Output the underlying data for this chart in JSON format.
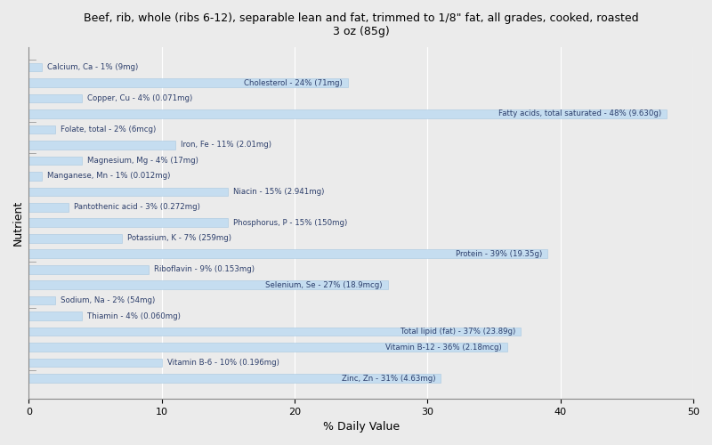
{
  "title": "Beef, rib, whole (ribs 6-12), separable lean and fat, trimmed to 1/8\" fat, all grades, cooked, roasted\n3 oz (85g)",
  "xlabel": "% Daily Value",
  "ylabel": "Nutrient",
  "xlim": [
    0,
    50
  ],
  "xticks": [
    0,
    10,
    20,
    30,
    40,
    50
  ],
  "bar_color": "#c5ddf0",
  "bar_edge_color": "#a8c8e0",
  "background_color": "#ebebeb",
  "text_color": "#2c3e6b",
  "text_threshold": 18,
  "bar_height": 0.55,
  "nutrients": [
    {
      "label": "Calcium, Ca - 1% (9mg)",
      "value": 1
    },
    {
      "label": "Cholesterol - 24% (71mg)",
      "value": 24
    },
    {
      "label": "Copper, Cu - 4% (0.071mg)",
      "value": 4
    },
    {
      "label": "Fatty acids, total saturated - 48% (9.630g)",
      "value": 48
    },
    {
      "label": "Folate, total - 2% (6mcg)",
      "value": 2
    },
    {
      "label": "Iron, Fe - 11% (2.01mg)",
      "value": 11
    },
    {
      "label": "Magnesium, Mg - 4% (17mg)",
      "value": 4
    },
    {
      "label": "Manganese, Mn - 1% (0.012mg)",
      "value": 1
    },
    {
      "label": "Niacin - 15% (2.941mg)",
      "value": 15
    },
    {
      "label": "Pantothenic acid - 3% (0.272mg)",
      "value": 3
    },
    {
      "label": "Phosphorus, P - 15% (150mg)",
      "value": 15
    },
    {
      "label": "Potassium, K - 7% (259mg)",
      "value": 7
    },
    {
      "label": "Protein - 39% (19.35g)",
      "value": 39
    },
    {
      "label": "Riboflavin - 9% (0.153mg)",
      "value": 9
    },
    {
      "label": "Selenium, Se - 27% (18.9mcg)",
      "value": 27
    },
    {
      "label": "Sodium, Na - 2% (54mg)",
      "value": 2
    },
    {
      "label": "Thiamin - 4% (0.060mg)",
      "value": 4
    },
    {
      "label": "Total lipid (fat) - 37% (23.89g)",
      "value": 37
    },
    {
      "label": "Vitamin B-12 - 36% (2.18mcg)",
      "value": 36
    },
    {
      "label": "Vitamin B-6 - 10% (0.196mg)",
      "value": 10
    },
    {
      "label": "Zinc, Zn - 31% (4.63mg)",
      "value": 31
    }
  ]
}
